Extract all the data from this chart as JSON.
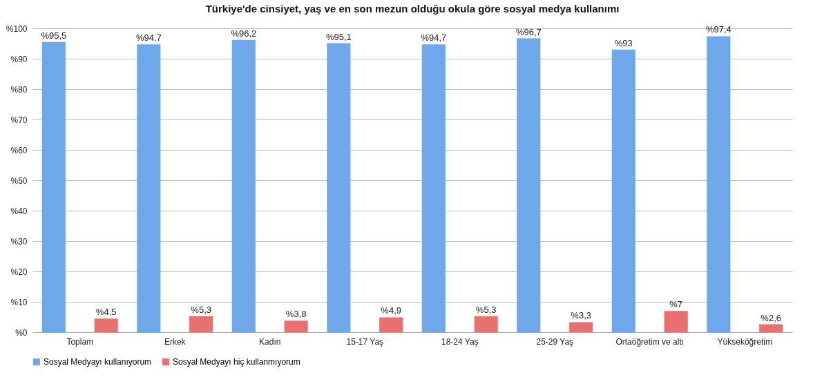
{
  "chart_data": {
    "type": "bar",
    "title": "Türkiye'de cinsiyet, yaş ve en son mezun olduğu okula göre sosyal medya kullanımı",
    "categories": [
      "Toplam",
      "Erkek",
      "Kadın",
      "15-17 Yaş",
      "18-24 Yaş",
      "25-29 Yaş",
      "Ortaöğretim ve altı",
      "Yükseköğretim"
    ],
    "series": [
      {
        "name": "Sosyal Medyayı kullanıyorum",
        "color": "#6fa8ea",
        "values": [
          95.5,
          94.7,
          96.2,
          95.1,
          94.7,
          96.7,
          93,
          97.4
        ],
        "value_labels": [
          "%95,5",
          "%94,7",
          "%96,2",
          "%95,1",
          "%94,7",
          "%96,7",
          "%93",
          "%97,4"
        ]
      },
      {
        "name": "Sosyal Medyayı hiç kullanmıyorum",
        "color": "#e8716f",
        "values": [
          4.5,
          5.3,
          3.8,
          4.9,
          5.3,
          3.3,
          7,
          2.6
        ],
        "value_labels": [
          "%4,5",
          "%5,3",
          "%3,8",
          "%4,9",
          "%5,3",
          "%3,3",
          "%7",
          "%2,6"
        ]
      }
    ],
    "ylim": [
      0,
      100
    ],
    "yticks": [
      {
        "value": 0,
        "label": "%0"
      },
      {
        "value": 10,
        "label": "%10"
      },
      {
        "value": 20,
        "label": "%20"
      },
      {
        "value": 30,
        "label": "%30"
      },
      {
        "value": 40,
        "label": "%40"
      },
      {
        "value": 50,
        "label": "%50"
      },
      {
        "value": 60,
        "label": "%60"
      },
      {
        "value": 70,
        "label": "%70"
      },
      {
        "value": 80,
        "label": "%80"
      },
      {
        "value": 90,
        "label": "%90"
      },
      {
        "value": 100,
        "label": "%100"
      }
    ],
    "grid": "y",
    "legend": "bottom"
  }
}
